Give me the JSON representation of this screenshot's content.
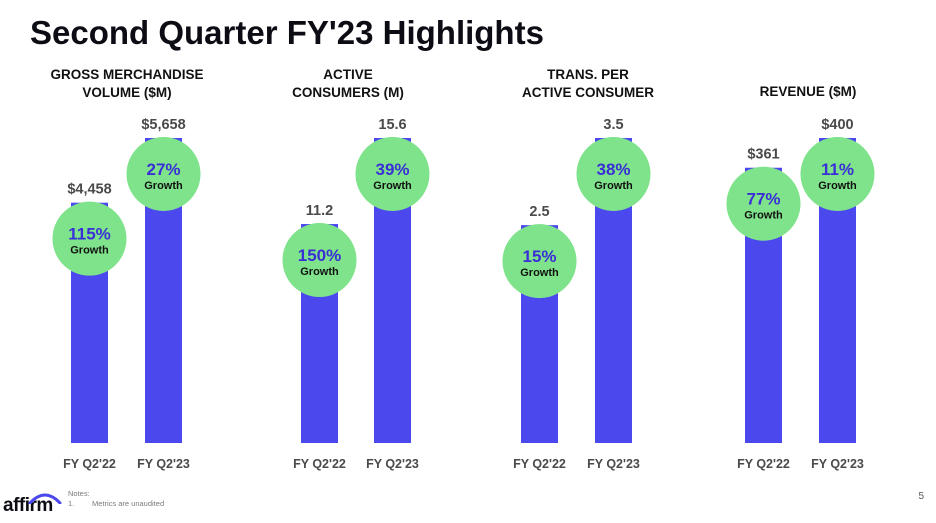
{
  "title": "Second Quarter FY'23 Highlights",
  "colors": {
    "bar": "#4b48ee",
    "bubble": "#7ee38a",
    "growth_text": "#3a2fd6"
  },
  "chart_data": [
    {
      "type": "bar",
      "title": [
        "GROSS MERCHANDISE",
        "VOLUME ($M)"
      ],
      "categories": [
        "FY Q2'22",
        "FY Q2'23"
      ],
      "values": [
        4458,
        5658
      ],
      "value_labels": [
        "$4,458",
        "$5,658"
      ],
      "growth": {
        "value": "115%",
        "label": "Growth"
      },
      "growth2": {
        "value": "27%",
        "label": "Growth"
      },
      "ylim": [
        0,
        5658
      ]
    },
    {
      "type": "bar",
      "title": [
        "ACTIVE",
        "CONSUMERS (M)"
      ],
      "categories": [
        "FY Q2'22",
        "FY Q2'23"
      ],
      "values": [
        11.2,
        15.6
      ],
      "value_labels": [
        "11.2",
        "15.6"
      ],
      "growth": {
        "value": "150%",
        "label": "Growth"
      },
      "growth2": {
        "value": "39%",
        "label": "Growth"
      },
      "ylim": [
        0,
        15.6
      ]
    },
    {
      "type": "bar",
      "title": [
        "TRANS. PER",
        "ACTIVE CONSUMER"
      ],
      "categories": [
        "FY Q2'22",
        "FY Q2'23"
      ],
      "values": [
        2.5,
        3.5
      ],
      "value_labels": [
        "2.5",
        "3.5"
      ],
      "growth": {
        "value": "15%",
        "label": "Growth"
      },
      "growth2": {
        "value": "38%",
        "label": "Growth"
      },
      "ylim": [
        0,
        3.5
      ]
    },
    {
      "type": "bar",
      "title": [
        "REVENUE ($M)"
      ],
      "categories": [
        "FY Q2'22",
        "FY Q2'23"
      ],
      "values": [
        361,
        400
      ],
      "value_labels": [
        "$361",
        "$400"
      ],
      "growth": {
        "value": "77%",
        "label": "Growth"
      },
      "growth2": {
        "value": "11%",
        "label": "Growth"
      },
      "ylim": [
        0,
        400
      ]
    }
  ],
  "footer": {
    "logo": "affirm",
    "notes_heading": "Notes:",
    "note_number": "1.",
    "note_text": "Metrics are unaudited",
    "page_number": "5"
  }
}
